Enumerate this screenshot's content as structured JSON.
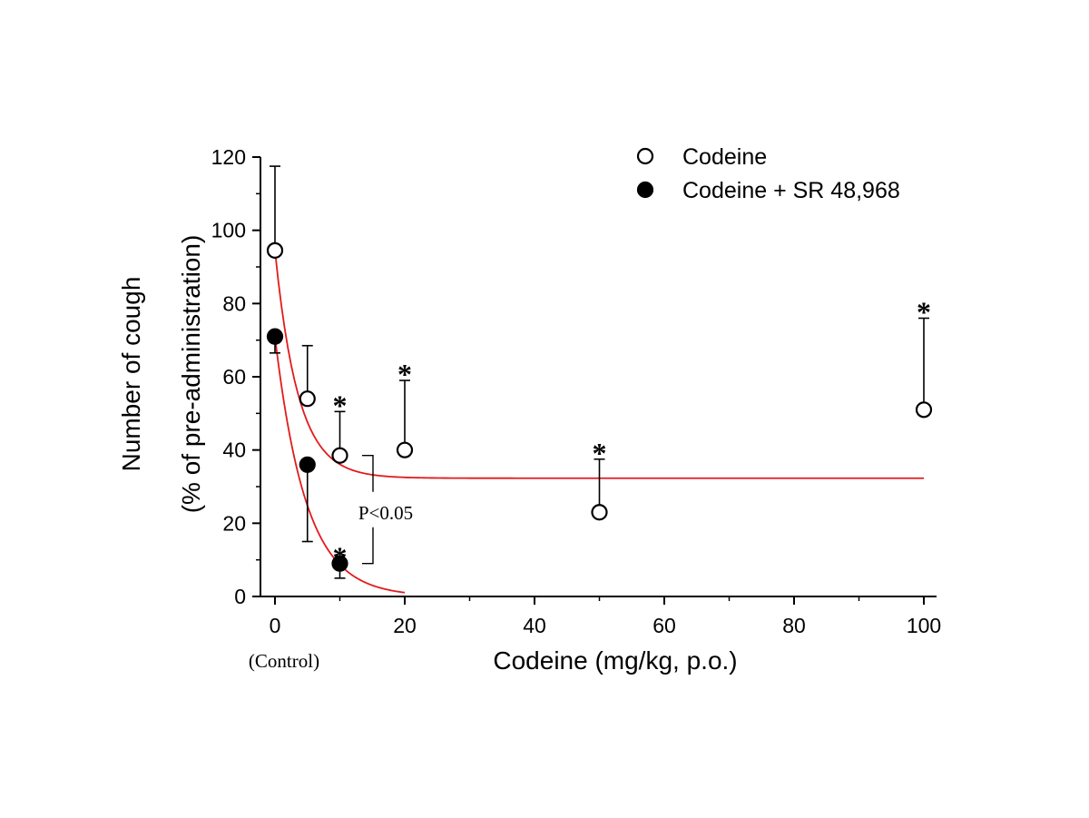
{
  "chart_data": {
    "type": "scatter",
    "xlabel": "Codeine (mg/kg, p.o.)",
    "ylabel_line1": "Number of cough",
    "ylabel_line2": "(% of pre-administration)",
    "xlim": [
      0,
      100
    ],
    "ylim": [
      0,
      120
    ],
    "x_ticks": [
      "0",
      "20",
      "40",
      "60",
      "80",
      "100"
    ],
    "y_ticks": [
      "0",
      "20",
      "40",
      "60",
      "80",
      "100",
      "120"
    ],
    "control_label": "(Control)",
    "series": [
      {
        "name": "Codeine",
        "marker": "open-circle",
        "points": [
          {
            "x": 0,
            "y": 94.5,
            "err": 23,
            "sig": false
          },
          {
            "x": 5,
            "y": 54,
            "err": 14.5,
            "sig": false
          },
          {
            "x": 10,
            "y": 38.5,
            "err": 12,
            "sig": true
          },
          {
            "x": 20,
            "y": 40,
            "err": 19,
            "sig": true
          },
          {
            "x": 50,
            "y": 23,
            "err": 14.5,
            "sig": true
          },
          {
            "x": 100,
            "y": 51,
            "err": 25,
            "sig": true
          }
        ],
        "fit": {
          "plateau": 32.3,
          "span": 62.2,
          "k": 0.28,
          "x_max": 100
        }
      },
      {
        "name": "Codeine + SR 48,968",
        "marker": "filled-circle",
        "points": [
          {
            "x": 0,
            "y": 71,
            "err": 4.5,
            "err_dir": "down",
            "sig": false
          },
          {
            "x": 5,
            "y": 36,
            "err": 21,
            "err_dir": "down",
            "sig": false
          },
          {
            "x": 10,
            "y": 9,
            "err": 4,
            "err_dir": "down",
            "sig": true
          }
        ],
        "fit": {
          "plateau": 0,
          "span": 71,
          "k": 0.21,
          "x_max": 20
        }
      }
    ],
    "significance_marker": "*",
    "comparison": {
      "label": "P<0.05",
      "x": 10,
      "y_top": 38.5,
      "y_bottom": 9
    },
    "fit_color": "#e31a1c",
    "legend_position": "top-right"
  }
}
